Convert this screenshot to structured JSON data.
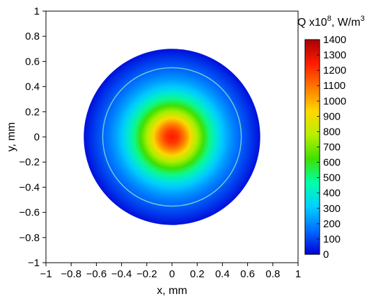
{
  "chart_data": {
    "type": "heatmap",
    "title": "",
    "xlabel": "x, mm",
    "ylabel": "y, mm",
    "xlim": [
      -1,
      1
    ],
    "ylim": [
      -1,
      1
    ],
    "xticks": [
      "−1",
      "−0.8",
      "−0.6",
      "−0.4",
      "−0.2",
      "0",
      "0.2",
      "0.4",
      "0.6",
      "0.8",
      "1"
    ],
    "yticks": [
      "1",
      "0.8",
      "0.6",
      "0.4",
      "0.2",
      "0",
      "−0.2",
      "−0.4",
      "−0.6",
      "−0.8",
      "−1"
    ],
    "xtick_values": [
      -1,
      -0.8,
      -0.6,
      -0.4,
      -0.2,
      0,
      0.2,
      0.4,
      0.6,
      0.8,
      1
    ],
    "ytick_values": [
      1,
      0.8,
      0.6,
      0.4,
      0.2,
      0,
      -0.2,
      -0.4,
      -0.6,
      -0.8,
      -1
    ],
    "domain_radius_mm": 0.7,
    "ring_radius_mm": 0.55,
    "radial_profile": {
      "r_mm": [
        0,
        0.05,
        0.1,
        0.15,
        0.2,
        0.25,
        0.3,
        0.35,
        0.4,
        0.45,
        0.5,
        0.55,
        0.6,
        0.65,
        0.7
      ],
      "Q": [
        1250,
        1200,
        1080,
        920,
        760,
        620,
        500,
        390,
        300,
        235,
        180,
        140,
        100,
        60,
        20
      ]
    },
    "colorbar": {
      "title_prefix": "Q  x10",
      "title_exp": "8",
      "title_unit": ", W/m",
      "title_unit_exp": "3",
      "min": 0,
      "max": 1400,
      "ticks": [
        "0",
        "100",
        "200",
        "300",
        "400",
        "500",
        "600",
        "700",
        "800",
        "900",
        "1000",
        "1100",
        "1200",
        "1300",
        "1400"
      ],
      "tick_values": [
        0,
        100,
        200,
        300,
        400,
        500,
        600,
        700,
        800,
        900,
        1000,
        1100,
        1200,
        1300,
        1400
      ],
      "colormap": "jet",
      "colormap_stops": [
        "#0000d6",
        "#006cff",
        "#00d0ff",
        "#00ffaa",
        "#3fe000",
        "#b8f000",
        "#ffd800",
        "#ff7a00",
        "#ff1c00",
        "#a80000"
      ]
    },
    "grid": false
  }
}
